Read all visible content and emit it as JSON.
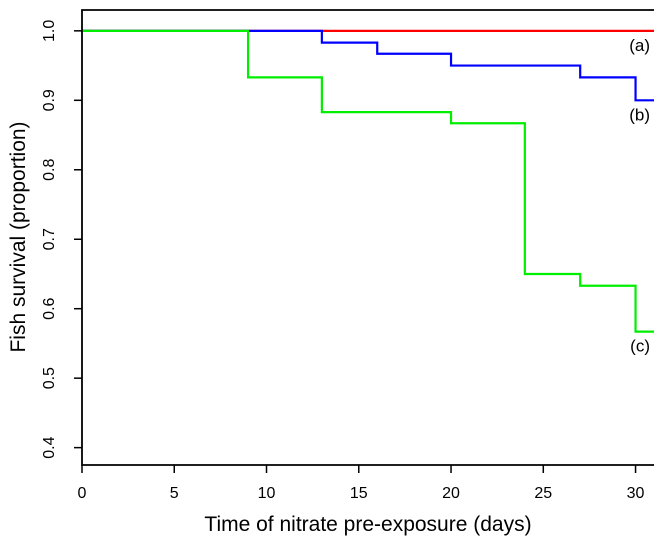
{
  "chart_data": {
    "type": "line",
    "step": true,
    "title": "",
    "xlabel": "Time of nitrate pre-exposure (days)",
    "ylabel": "Fish survival (proportion)",
    "xlim": [
      0,
      31
    ],
    "ylim": [
      0.375,
      1.03
    ],
    "xticks": [
      0,
      5,
      10,
      15,
      20,
      25,
      30
    ],
    "yticks": [
      0.4,
      0.5,
      0.6,
      0.7,
      0.8,
      0.9,
      1.0
    ],
    "xtick_labels": [
      "0",
      "5",
      "10",
      "15",
      "20",
      "25",
      "30"
    ],
    "ytick_labels": [
      "0.4",
      "0.5",
      "0.6",
      "0.7",
      "0.8",
      "0.9",
      "1.0"
    ],
    "grid": false,
    "series": [
      {
        "label": "(a)",
        "color": "#ff0000",
        "x": [
          0,
          31
        ],
        "y": [
          1.0,
          1.0
        ]
      },
      {
        "label": "(b)",
        "color": "#0000ff",
        "x": [
          0,
          13,
          16,
          20,
          27,
          30,
          31
        ],
        "y": [
          1.0,
          0.983,
          0.967,
          0.95,
          0.933,
          0.9,
          0.9
        ]
      },
      {
        "label": "(c)",
        "color": "#00ee00",
        "x": [
          0,
          9,
          13,
          20,
          24,
          27,
          30,
          31
        ],
        "y": [
          1.0,
          0.933,
          0.883,
          0.867,
          0.65,
          0.633,
          0.567,
          0.567
        ]
      }
    ]
  }
}
